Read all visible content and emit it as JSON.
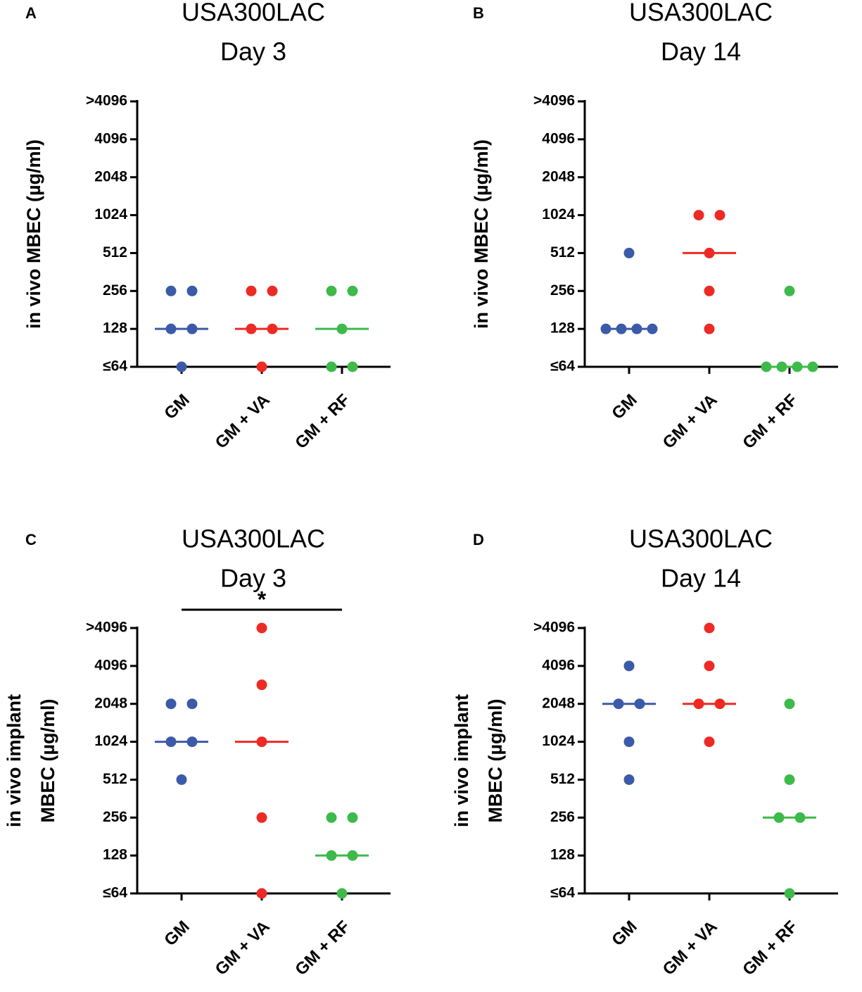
{
  "chart_data": [
    {
      "type": "dotplot",
      "panel": "A",
      "title": [
        "USA300LAC",
        "Day 3"
      ],
      "ylabel": [
        "in vivo MBEC (µg/ml)"
      ],
      "categories": [
        "GM",
        "GM + VA",
        "GM + RF"
      ],
      "colors": [
        "#3b5aa8",
        "#ee2a24",
        "#3dba4a"
      ],
      "points": [
        [
          256,
          256,
          128,
          128,
          64
        ],
        [
          256,
          256,
          128,
          128,
          64
        ],
        [
          256,
          256,
          128,
          64,
          64
        ]
      ],
      "medians": [
        128,
        128,
        128
      ],
      "log_base": 2,
      "ylim": [
        64,
        8192
      ],
      "yticks": [
        {
          "value": 64,
          "label": "≤64"
        },
        128,
        256,
        512,
        1024,
        2048,
        4096,
        {
          "value": 8192,
          "label": ">4096"
        }
      ]
    },
    {
      "type": "dotplot",
      "panel": "B",
      "title": [
        "USA300LAC",
        "Day 14"
      ],
      "ylabel": [
        "in vivo MBEC (µg/ml)"
      ],
      "categories": [
        "GM",
        "GM + VA",
        "GM + RF"
      ],
      "colors": [
        "#3b5aa8",
        "#ee2a24",
        "#3dba4a"
      ],
      "points": [
        [
          512,
          128,
          128,
          128,
          128
        ],
        [
          1024,
          1024,
          512,
          256,
          128
        ],
        [
          256,
          64,
          64,
          64,
          64
        ]
      ],
      "medians": [
        128,
        512,
        64
      ],
      "log_base": 2,
      "ylim": [
        64,
        8192
      ],
      "yticks": [
        {
          "value": 64,
          "label": "≤64"
        },
        128,
        256,
        512,
        1024,
        2048,
        4096,
        {
          "value": 8192,
          "label": ">4096"
        }
      ]
    },
    {
      "type": "dotplot",
      "panel": "C",
      "title": [
        "USA300LAC",
        "Day 3"
      ],
      "ylabel": [
        "in vivo implant",
        "MBEC (µg/ml)"
      ],
      "categories": [
        "GM",
        "GM + VA",
        "GM + RF"
      ],
      "colors": [
        "#3b5aa8",
        "#ee2a24",
        "#3dba4a"
      ],
      "points": [
        [
          2048,
          2048,
          1024,
          1024,
          512
        ],
        [
          8192,
          2900,
          1024,
          256,
          64
        ],
        [
          256,
          256,
          128,
          128,
          64
        ]
      ],
      "medians": [
        1024,
        1024,
        128
      ],
      "log_base": 2,
      "ylim": [
        64,
        8192
      ],
      "yticks": [
        {
          "value": 64,
          "label": "≤64"
        },
        128,
        256,
        512,
        1024,
        2048,
        4096,
        {
          "value": 8192,
          "label": ">4096"
        }
      ],
      "significance": {
        "groups": [
          0,
          2
        ],
        "label": "*"
      }
    },
    {
      "type": "dotplot",
      "panel": "D",
      "title": [
        "USA300LAC",
        "Day 14"
      ],
      "ylabel": [
        "in vivo implant",
        "MBEC (µg/ml)"
      ],
      "categories": [
        "GM",
        "GM + VA",
        "GM + RF"
      ],
      "colors": [
        "#3b5aa8",
        "#ee2a24",
        "#3dba4a"
      ],
      "points": [
        [
          4096,
          2048,
          2048,
          1024,
          512
        ],
        [
          8192,
          4096,
          2048,
          2048,
          1024
        ],
        [
          2048,
          512,
          256,
          256,
          64
        ]
      ],
      "medians": [
        2048,
        2048,
        256
      ],
      "log_base": 2,
      "ylim": [
        64,
        8192
      ],
      "yticks": [
        {
          "value": 64,
          "label": "≤64"
        },
        128,
        256,
        512,
        1024,
        2048,
        4096,
        {
          "value": 8192,
          "label": ">4096"
        }
      ]
    }
  ]
}
